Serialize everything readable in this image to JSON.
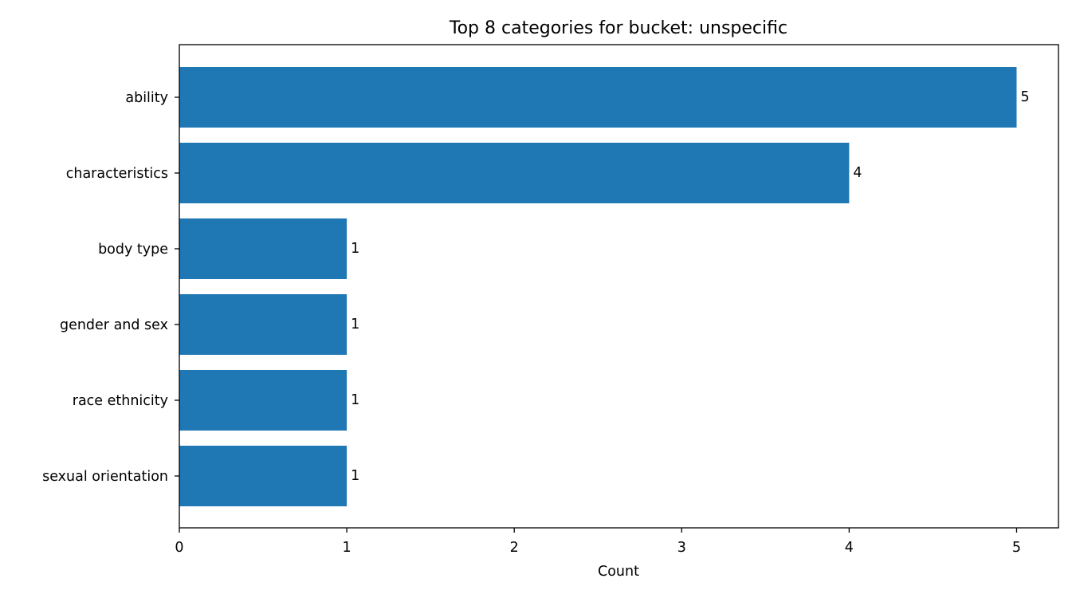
{
  "chart_data": {
    "type": "bar",
    "orientation": "horizontal",
    "title": "Top 8 categories for bucket: unspecific",
    "xlabel": "Count",
    "ylabel": "",
    "categories": [
      "ability",
      "characteristics",
      "body type",
      "gender and sex",
      "race ethnicity",
      "sexual orientation"
    ],
    "values": [
      5,
      4,
      1,
      1,
      1,
      1
    ],
    "xlim": [
      0,
      5.25
    ],
    "xticks": [
      0,
      1,
      2,
      3,
      4,
      5
    ],
    "grid": false,
    "legend": "none",
    "bar_color": "#1f77b4"
  }
}
